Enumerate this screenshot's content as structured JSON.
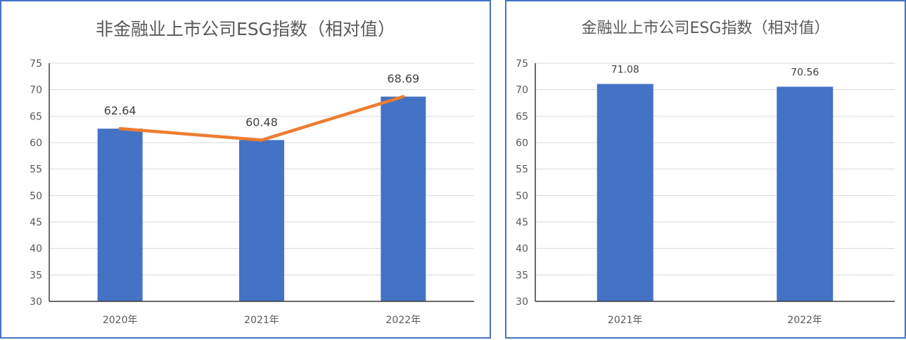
{
  "chart_data": [
    {
      "type": "bar",
      "title": "非金融业上市公司ESG指数（相对值）",
      "categories": [
        "2020年",
        "2021年",
        "2022年"
      ],
      "values": [
        62.64,
        60.48,
        68.69
      ],
      "data_labels": [
        "62.64",
        "60.48",
        "68.69"
      ],
      "overlay_line": {
        "values": [
          62.64,
          60.48,
          68.69
        ],
        "color": "#ed7d31"
      },
      "ylim": [
        30,
        75
      ],
      "yticks": [
        "30",
        "35",
        "40",
        "45",
        "50",
        "55",
        "60",
        "65",
        "70",
        "75"
      ],
      "ytick_values": [
        30,
        35,
        40,
        45,
        50,
        55,
        60,
        65,
        70,
        75
      ],
      "bar_color": "#4472c4",
      "grid": true
    },
    {
      "type": "bar",
      "title": "金融业上市公司ESG指数（相对值）",
      "categories": [
        "2021年",
        "2022年"
      ],
      "values": [
        71.08,
        70.56
      ],
      "data_labels": [
        "71.08",
        "70.56"
      ],
      "ylim": [
        30,
        75
      ],
      "yticks": [
        "30",
        "35",
        "40",
        "45",
        "50",
        "55",
        "60",
        "65",
        "70",
        "75"
      ],
      "ytick_values": [
        30,
        35,
        40,
        45,
        50,
        55,
        60,
        65,
        70,
        75
      ],
      "bar_color": "#4472c4",
      "grid": true
    }
  ]
}
